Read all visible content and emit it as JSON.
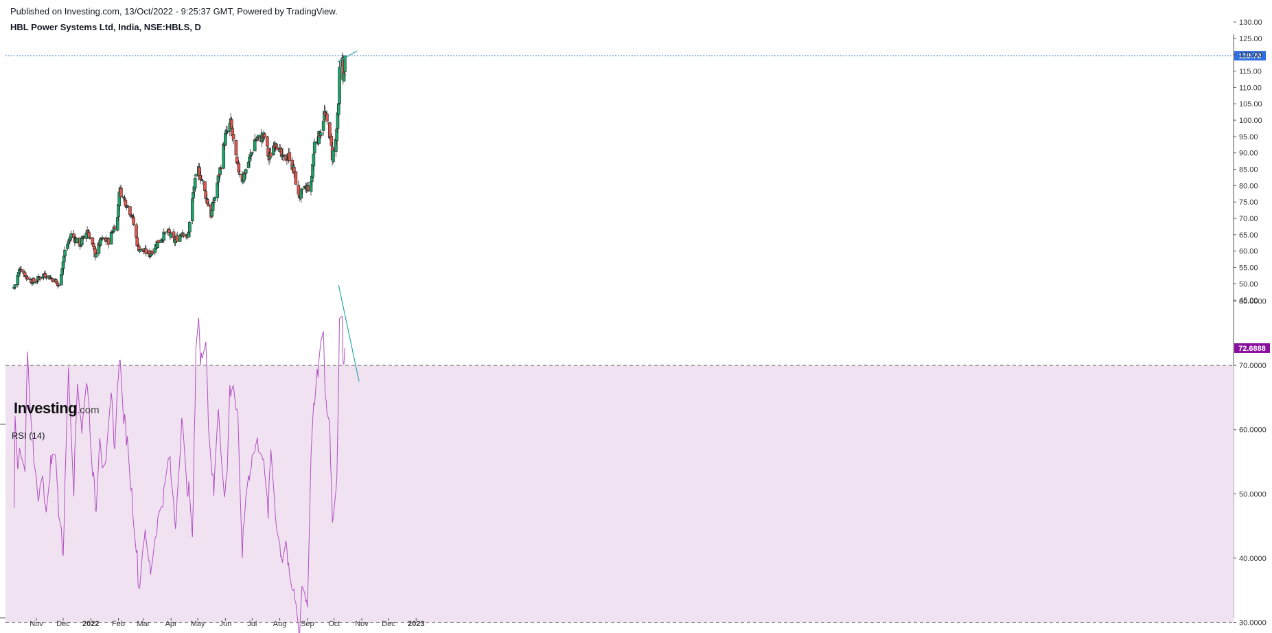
{
  "header": {
    "published": "Published on Investing.com, 13/Oct/2022 - 9:25:37 GMT, Powered by TradingView.",
    "title": "HBL Power Systems Ltd, India, NSE:HBLS, D"
  },
  "logo": {
    "brand": "Investing",
    "suffix": ".com"
  },
  "colors": {
    "up": "#1fa36b",
    "down": "#e0574f",
    "rsi_line": "#b04fc2",
    "rsi_band": "#f1e2f1",
    "last_price_tag": "#2f6fe0",
    "rsi_tag": "#8b0f9e",
    "trendline": "#2aa7a3"
  },
  "chart_data": [
    {
      "type": "candlestick",
      "title": "HBL Power Systems Ltd, India, NSE:HBLS, D",
      "y_ticks": [
        "45.00",
        "50.00",
        "55.00",
        "60.00",
        "65.00",
        "70.00",
        "75.00",
        "80.00",
        "85.00",
        "90.00",
        "95.00",
        "100.00",
        "105.00",
        "110.00",
        "115.00",
        "120.00",
        "125.00",
        "130.00"
      ],
      "ylim": [
        42.5,
        131.5
      ],
      "last_price": "119.70",
      "x_labels": [
        "Nov",
        "Dec",
        "2022",
        "Feb",
        "Mar",
        "Apr",
        "May",
        "Jun",
        "Jul",
        "Aug",
        "Sep",
        "Oct",
        "Nov",
        "Dec",
        "2023"
      ],
      "anchors": [
        {
          "date": "2021-10-07",
          "close": 49
        },
        {
          "date": "2021-10-14",
          "close": 55
        },
        {
          "date": "2021-10-21",
          "close": 52
        },
        {
          "date": "2021-10-29",
          "close": 50.5
        },
        {
          "date": "2021-11-10",
          "close": 53
        },
        {
          "date": "2021-11-22",
          "close": 51
        },
        {
          "date": "2021-11-26",
          "close": 49
        },
        {
          "date": "2021-12-03",
          "close": 60
        },
        {
          "date": "2021-12-10",
          "close": 65
        },
        {
          "date": "2021-12-20",
          "close": 62
        },
        {
          "date": "2021-12-28",
          "close": 66.5
        },
        {
          "date": "2022-01-06",
          "close": 59
        },
        {
          "date": "2022-01-13",
          "close": 63.5
        },
        {
          "date": "2022-01-21",
          "close": 63
        },
        {
          "date": "2022-01-31",
          "close": 70
        },
        {
          "date": "2022-02-02",
          "close": 79
        },
        {
          "date": "2022-02-09",
          "close": 75
        },
        {
          "date": "2022-02-16",
          "close": 71
        },
        {
          "date": "2022-02-23",
          "close": 61
        },
        {
          "date": "2022-03-08",
          "close": 59
        },
        {
          "date": "2022-03-18",
          "close": 63
        },
        {
          "date": "2022-03-28",
          "close": 66
        },
        {
          "date": "2022-04-05",
          "close": 63
        },
        {
          "date": "2022-04-14",
          "close": 66
        },
        {
          "date": "2022-04-20",
          "close": 64
        },
        {
          "date": "2022-04-27",
          "close": 80
        },
        {
          "date": "2022-05-02",
          "close": 85
        },
        {
          "date": "2022-05-09",
          "close": 78
        },
        {
          "date": "2022-05-16",
          "close": 71
        },
        {
          "date": "2022-05-26",
          "close": 85
        },
        {
          "date": "2022-06-01",
          "close": 95
        },
        {
          "date": "2022-06-07",
          "close": 99
        },
        {
          "date": "2022-06-14",
          "close": 86
        },
        {
          "date": "2022-06-20",
          "close": 82
        },
        {
          "date": "2022-06-28",
          "close": 88
        },
        {
          "date": "2022-07-04",
          "close": 94
        },
        {
          "date": "2022-07-15",
          "close": 95
        },
        {
          "date": "2022-07-20",
          "close": 88
        },
        {
          "date": "2022-07-27",
          "close": 94
        },
        {
          "date": "2022-08-04",
          "close": 88
        },
        {
          "date": "2022-08-12",
          "close": 89
        },
        {
          "date": "2022-08-18",
          "close": 83
        },
        {
          "date": "2022-08-22",
          "close": 76.5
        },
        {
          "date": "2022-08-30",
          "close": 79
        },
        {
          "date": "2022-09-05",
          "close": 80
        },
        {
          "date": "2022-09-09",
          "close": 93
        },
        {
          "date": "2022-09-14",
          "close": 95
        },
        {
          "date": "2022-09-20",
          "close": 102
        },
        {
          "date": "2022-09-26",
          "close": 96
        },
        {
          "date": "2022-09-29",
          "close": 89
        },
        {
          "date": "2022-10-03",
          "close": 94
        },
        {
          "date": "2022-10-06",
          "close": 104
        },
        {
          "date": "2022-10-07",
          "close": 115
        },
        {
          "date": "2022-10-10",
          "close": 119
        },
        {
          "date": "2022-10-11",
          "close": 114
        },
        {
          "date": "2022-10-12",
          "close": 113.5
        },
        {
          "date": "2022-10-13",
          "close": 119.7
        }
      ]
    },
    {
      "type": "line",
      "title": "RSI (14)",
      "y_ticks": [
        "30.0000",
        "40.0000",
        "50.0000",
        "60.0000",
        "70.0000",
        "80.0000"
      ],
      "ylim": [
        27.5,
        82.5
      ],
      "band": [
        30,
        70
      ],
      "last_value": "72.6888",
      "anchors": [
        {
          "date": "2021-10-07",
          "v": 49
        },
        {
          "date": "2021-10-08",
          "v": 63
        },
        {
          "date": "2021-10-11",
          "v": 55
        },
        {
          "date": "2021-10-14",
          "v": 56
        },
        {
          "date": "2021-10-19",
          "v": 53
        },
        {
          "date": "2021-10-22",
          "v": 72
        },
        {
          "date": "2021-10-26",
          "v": 60
        },
        {
          "date": "2021-11-01",
          "v": 52
        },
        {
          "date": "2021-11-04",
          "v": 49
        },
        {
          "date": "2021-11-08",
          "v": 54
        },
        {
          "date": "2021-11-12",
          "v": 46
        },
        {
          "date": "2021-11-17",
          "v": 55
        },
        {
          "date": "2021-11-23",
          "v": 56
        },
        {
          "date": "2021-11-26",
          "v": 47
        },
        {
          "date": "2021-12-01",
          "v": 41
        },
        {
          "date": "2021-12-07",
          "v": 70
        },
        {
          "date": "2021-12-13",
          "v": 51
        },
        {
          "date": "2021-12-17",
          "v": 68
        },
        {
          "date": "2021-12-22",
          "v": 60
        },
        {
          "date": "2021-12-28",
          "v": 68
        },
        {
          "date": "2022-01-03",
          "v": 54
        },
        {
          "date": "2022-01-07",
          "v": 47
        },
        {
          "date": "2022-01-11",
          "v": 60
        },
        {
          "date": "2022-01-14",
          "v": 55
        },
        {
          "date": "2022-01-19",
          "v": 56
        },
        {
          "date": "2022-01-24",
          "v": 65
        },
        {
          "date": "2022-01-28",
          "v": 57
        },
        {
          "date": "2022-02-02",
          "v": 72
        },
        {
          "date": "2022-02-07",
          "v": 62
        },
        {
          "date": "2022-02-11",
          "v": 58
        },
        {
          "date": "2022-02-16",
          "v": 50
        },
        {
          "date": "2022-02-22",
          "v": 40
        },
        {
          "date": "2022-02-24",
          "v": 35
        },
        {
          "date": "2022-03-02",
          "v": 44
        },
        {
          "date": "2022-03-09",
          "v": 38
        },
        {
          "date": "2022-03-16",
          "v": 45
        },
        {
          "date": "2022-03-24",
          "v": 50
        },
        {
          "date": "2022-03-30",
          "v": 56
        },
        {
          "date": "2022-04-06",
          "v": 45
        },
        {
          "date": "2022-04-13",
          "v": 62
        },
        {
          "date": "2022-04-18",
          "v": 52
        },
        {
          "date": "2022-04-22",
          "v": 50
        },
        {
          "date": "2022-04-25",
          "v": 42
        },
        {
          "date": "2022-04-29",
          "v": 73
        },
        {
          "date": "2022-05-02",
          "v": 78
        },
        {
          "date": "2022-05-04",
          "v": 70
        },
        {
          "date": "2022-05-10",
          "v": 75
        },
        {
          "date": "2022-05-13",
          "v": 61
        },
        {
          "date": "2022-05-19",
          "v": 50
        },
        {
          "date": "2022-05-24",
          "v": 64
        },
        {
          "date": "2022-05-31",
          "v": 49
        },
        {
          "date": "2022-06-03",
          "v": 54
        },
        {
          "date": "2022-06-06",
          "v": 66
        },
        {
          "date": "2022-06-10",
          "v": 67
        },
        {
          "date": "2022-06-15",
          "v": 61
        },
        {
          "date": "2022-06-20",
          "v": 41
        },
        {
          "date": "2022-06-24",
          "v": 50
        },
        {
          "date": "2022-06-30",
          "v": 55
        },
        {
          "date": "2022-07-06",
          "v": 58
        },
        {
          "date": "2022-07-12",
          "v": 57
        },
        {
          "date": "2022-07-19",
          "v": 47
        },
        {
          "date": "2022-07-22",
          "v": 57
        },
        {
          "date": "2022-07-29",
          "v": 44
        },
        {
          "date": "2022-08-04",
          "v": 40
        },
        {
          "date": "2022-08-08",
          "v": 43
        },
        {
          "date": "2022-08-12",
          "v": 36
        },
        {
          "date": "2022-08-18",
          "v": 34
        },
        {
          "date": "2022-08-23",
          "v": 28
        },
        {
          "date": "2022-08-26",
          "v": 36
        },
        {
          "date": "2022-09-01",
          "v": 33
        },
        {
          "date": "2022-09-06",
          "v": 60
        },
        {
          "date": "2022-09-12",
          "v": 68
        },
        {
          "date": "2022-09-19",
          "v": 76
        },
        {
          "date": "2022-09-21",
          "v": 65
        },
        {
          "date": "2022-09-26",
          "v": 61
        },
        {
          "date": "2022-09-29",
          "v": 46
        },
        {
          "date": "2022-10-04",
          "v": 53
        },
        {
          "date": "2022-10-07",
          "v": 76
        },
        {
          "date": "2022-10-10",
          "v": 77
        },
        {
          "date": "2022-10-11",
          "v": 69
        },
        {
          "date": "2022-10-12",
          "v": 70
        },
        {
          "date": "2022-10-13",
          "v": 72.7
        }
      ]
    }
  ]
}
